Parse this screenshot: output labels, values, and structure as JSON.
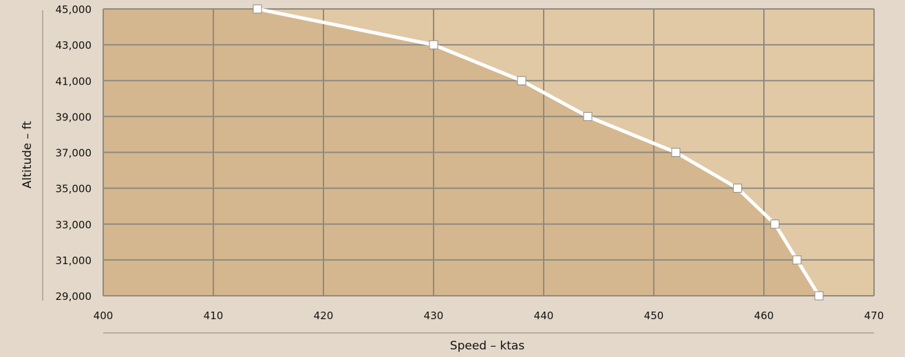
{
  "colors": {
    "page_background": "#e3d8c9",
    "plot_fill_light": "#e1c9a6",
    "area_fill": "#d4b78e",
    "grid": "#8f8a80",
    "line": "#ffffff",
    "marker_stroke": "#8f8a80",
    "divider": "#8a8580"
  },
  "chart_data": {
    "type": "area",
    "title": "",
    "xlabel": "Speed – ktas",
    "ylabel": "Altitude – ft",
    "xlim": [
      400,
      470
    ],
    "ylim": [
      29000,
      45000
    ],
    "x_ticks": [
      400,
      410,
      420,
      430,
      440,
      450,
      460,
      470
    ],
    "x_tick_labels": [
      "400",
      "410",
      "420",
      "430",
      "440",
      "450",
      "460",
      "470"
    ],
    "y_ticks": [
      29000,
      31000,
      33000,
      35000,
      37000,
      39000,
      41000,
      43000,
      45000
    ],
    "y_tick_labels": [
      "29,000",
      "31,000",
      "33,000",
      "35,000",
      "37,000",
      "39,000",
      "41,000",
      "43,000",
      "45,000"
    ],
    "grid": true,
    "legend": "none",
    "series": [
      {
        "marker": "square",
        "points": [
          {
            "x": 414,
            "y": 45000
          },
          {
            "x": 430,
            "y": 43000
          },
          {
            "x": 438,
            "y": 41000
          },
          {
            "x": 444,
            "y": 39000
          },
          {
            "x": 452,
            "y": 37000
          },
          {
            "x": 457.6,
            "y": 35000
          },
          {
            "x": 461,
            "y": 33000
          },
          {
            "x": 463,
            "y": 31000
          },
          {
            "x": 465,
            "y": 29000
          }
        ]
      }
    ]
  }
}
